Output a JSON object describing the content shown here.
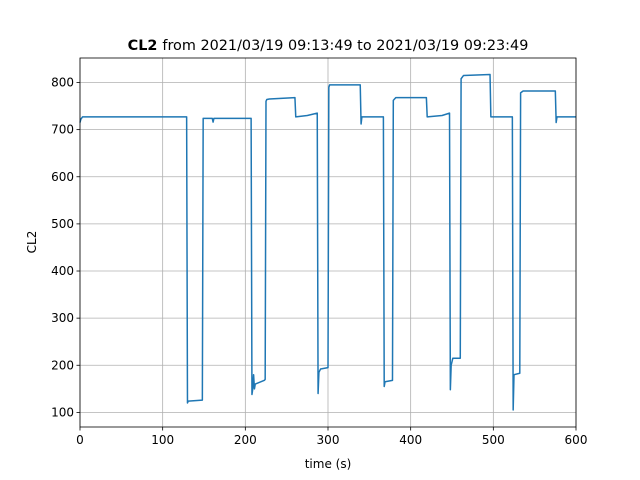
{
  "chart_data": {
    "type": "line",
    "title_bold": "CL2",
    "title": "from 2021/03/19 09:13:49 to 2021/03/19 09:23:49",
    "xlabel": "time (s)",
    "ylabel": "CL2",
    "xlim": [
      0,
      600
    ],
    "ylim": [
      69,
      852
    ],
    "xticks": [
      0,
      100,
      200,
      300,
      400,
      500,
      600
    ],
    "yticks": [
      100,
      200,
      300,
      400,
      500,
      600,
      700,
      800
    ],
    "grid": true,
    "x": [
      0,
      1,
      3,
      129,
      130,
      131,
      148,
      149,
      160,
      161,
      162,
      207,
      208,
      209,
      210,
      211,
      212,
      223,
      224,
      225,
      226,
      229,
      260,
      261,
      275,
      287,
      288,
      289,
      291,
      300,
      301,
      302,
      339,
      340,
      341,
      367,
      368,
      369,
      378,
      379,
      382,
      419,
      420,
      438,
      447,
      448,
      449,
      451,
      460,
      461,
      464,
      496,
      497,
      523,
      524,
      525,
      532,
      533,
      536,
      575,
      576,
      577,
      600
    ],
    "series": [
      {
        "name": "CL2",
        "color": "#1f77b4",
        "values": [
          715,
          722,
          727,
          727,
          120,
          124,
          126,
          724,
          724,
          716,
          724,
          724,
          138,
          150,
          180,
          150,
          160,
          168,
          170,
          760,
          764,
          765,
          768,
          727,
          730,
          735,
          140,
          185,
          192,
          195,
          790,
          795,
          795,
          712,
          727,
          727,
          155,
          165,
          168,
          762,
          768,
          768,
          727,
          730,
          735,
          148,
          200,
          215,
          215,
          808,
          815,
          817,
          727,
          727,
          105,
          180,
          183,
          778,
          782,
          782,
          715,
          727,
          727
        ]
      }
    ]
  }
}
